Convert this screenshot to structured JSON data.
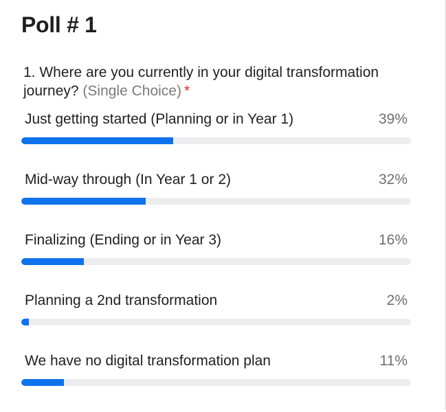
{
  "poll": {
    "title": "Poll # 1",
    "question": {
      "text": "1. Where are you currently in your digital transformation journey?",
      "type": "(Single Choice)",
      "required_mark": "*"
    },
    "options": [
      {
        "label": "Just getting started (Planning or in Year 1)",
        "percent_label": "39%",
        "percent": 39
      },
      {
        "label": "Mid-way through (In Year 1 or 2)",
        "percent_label": "32%",
        "percent": 32
      },
      {
        "label": "Finalizing (Ending or in Year 3)",
        "percent_label": "16%",
        "percent": 16
      },
      {
        "label": "Planning a 2nd transformation",
        "percent_label": "2%",
        "percent": 2
      },
      {
        "label": "We have no digital transformation plan",
        "percent_label": "11%",
        "percent": 11
      }
    ]
  },
  "colors": {
    "bar_fill": "#0e72ed",
    "bar_track": "#ededf0",
    "required": "#e0252b"
  }
}
